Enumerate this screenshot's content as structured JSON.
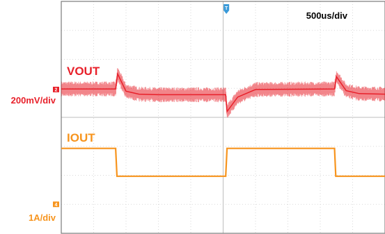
{
  "chart_data": {
    "type": "line",
    "timebase": "500us/div",
    "x_unit": "div",
    "xlim": [
      0,
      10
    ],
    "ylim": [
      0,
      8
    ],
    "grid": true,
    "channels": [
      {
        "name": "VOUT",
        "scale": "200mV/div",
        "channel_number": "2",
        "color": "#e8202a",
        "ground_level_div": 4.96,
        "x": [
          0,
          1.68,
          1.74,
          2.0,
          2.4,
          3.0,
          5.08,
          5.12,
          5.45,
          6.0,
          8.44,
          8.5,
          8.8,
          9.2,
          10
        ],
        "y": [
          4.98,
          4.98,
          5.5,
          4.9,
          4.8,
          4.78,
          4.78,
          4.2,
          4.7,
          4.96,
          4.98,
          5.4,
          4.92,
          4.82,
          4.8
        ]
      },
      {
        "name": "IOUT",
        "scale": "1A/div",
        "channel_number": "4",
        "color": "#f7941d",
        "ground_level_div": 1.0,
        "x": [
          0,
          1.68,
          1.72,
          5.08,
          5.12,
          8.44,
          8.48,
          10
        ],
        "y": [
          2.93,
          2.93,
          1.97,
          1.97,
          2.93,
          2.93,
          1.97,
          1.97
        ]
      }
    ],
    "trigger_marker_x_div": 5.1
  },
  "trigger_label": "T"
}
